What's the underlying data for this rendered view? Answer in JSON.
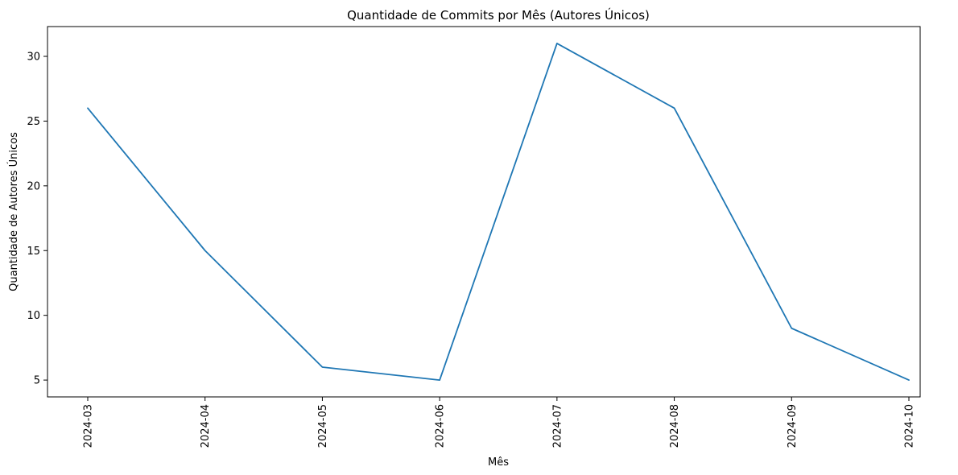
{
  "chart_data": {
    "type": "line",
    "title": "Quantidade de Commits por Mês (Autores Únicos)",
    "xlabel": "Mês",
    "ylabel": "Quantidade de Autores Únicos",
    "categories": [
      "2024-03",
      "2024-04",
      "2024-05",
      "2024-06",
      "2024-07",
      "2024-08",
      "2024-09",
      "2024-10"
    ],
    "series": [
      {
        "values": [
          26,
          15,
          6,
          5,
          31,
          26,
          9,
          5
        ],
        "color": "#1f77b4"
      }
    ],
    "yticks": [
      5,
      10,
      15,
      20,
      25,
      30
    ],
    "ylim": [
      3.7,
      32.3
    ],
    "grid": false,
    "legend": "none"
  }
}
